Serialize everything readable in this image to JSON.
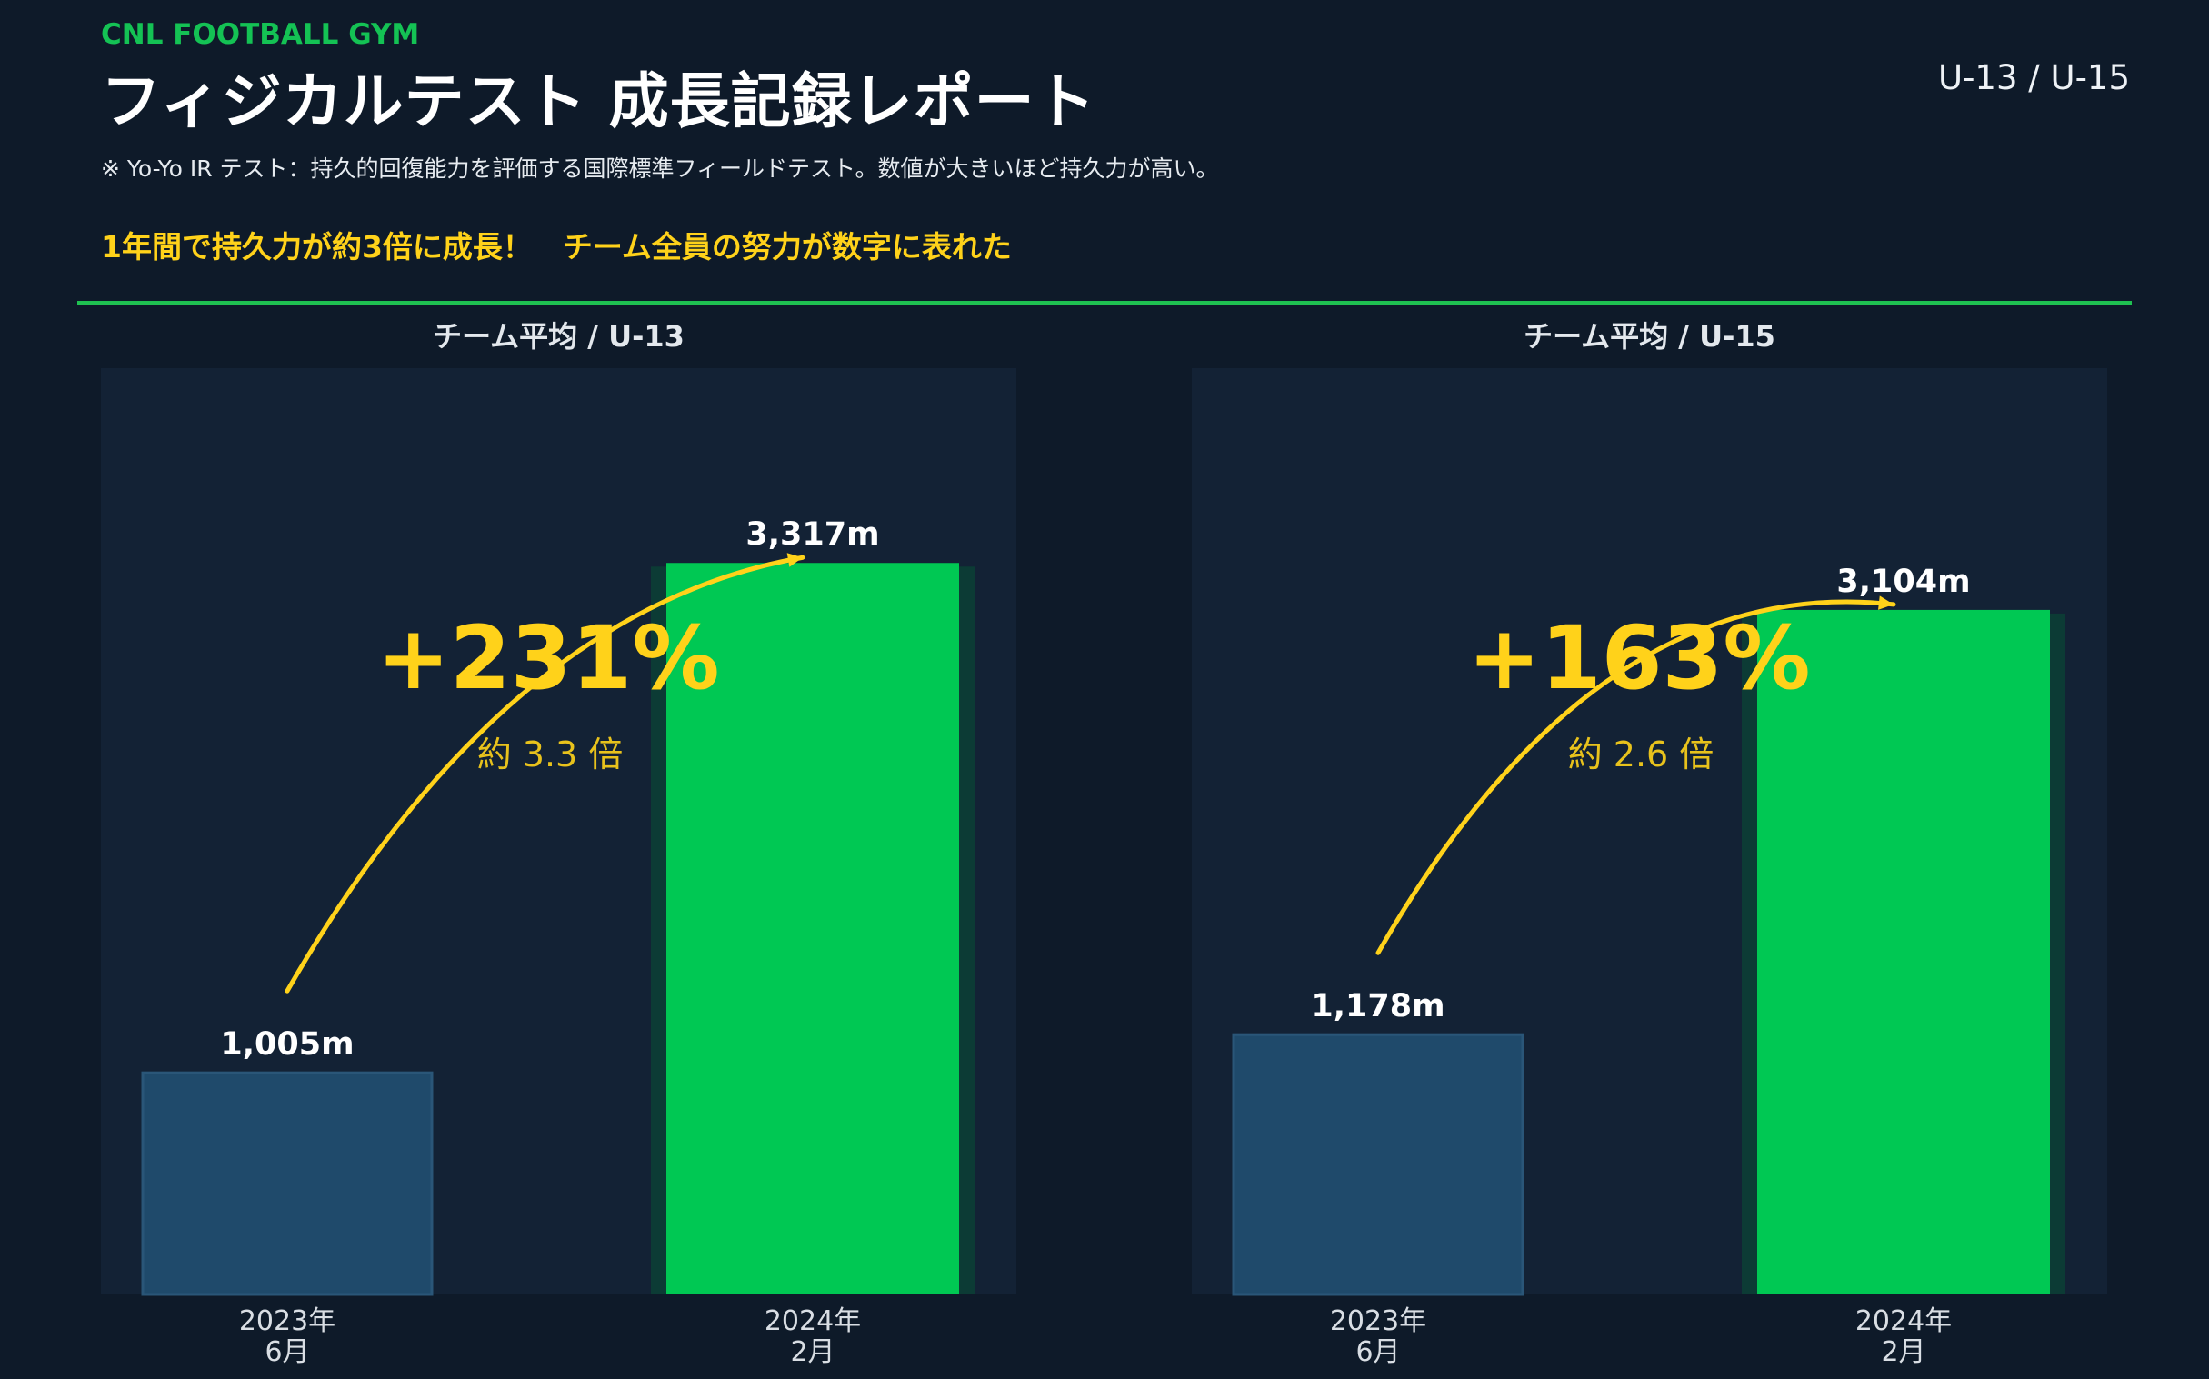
{
  "header": {
    "brand": "CNL FOOTBALL GYM",
    "title": "フィジカルテスト 成長記録レポート",
    "scope": "U-13 / U-15",
    "note": "※ Yo-Yo IR テスト：持久的回復能力を評価する国際標準フィールドテスト。数値が大きいほど持久力が高い。",
    "headline": "1年間で持久力が約3倍に成長！　チーム全員の努力が数字に表れた"
  },
  "colors": {
    "background": "#0e1a29",
    "panel": "#132235",
    "bar_before": "#1f4a6b",
    "bar_after": "#00c853",
    "bar_after_shadow": "#0c3b35",
    "accent_yellow": "#ffd21a",
    "brand_green": "#14c254"
  },
  "chart_data": [
    {
      "type": "bar",
      "title": "チーム平均 / U-13",
      "categories": [
        [
          "2023年",
          "6月"
        ],
        [
          "2024年",
          "2月"
        ]
      ],
      "values": [
        1005,
        3317
      ],
      "value_labels": [
        "1,005m",
        "3,317m"
      ],
      "unit": "m",
      "ylim": [
        0,
        4200
      ],
      "growth_label": "+231%",
      "ratio_label": "約 3.3 倍",
      "grid": false
    },
    {
      "type": "bar",
      "title": "チーム平均 / U-15",
      "categories": [
        [
          "2023年",
          "6月"
        ],
        [
          "2024年",
          "2月"
        ]
      ],
      "values": [
        1178,
        3104
      ],
      "value_labels": [
        "1,178m",
        "3,104m"
      ],
      "unit": "m",
      "ylim": [
        0,
        4200
      ],
      "growth_label": "+163%",
      "ratio_label": "約 2.6 倍",
      "grid": false
    }
  ]
}
